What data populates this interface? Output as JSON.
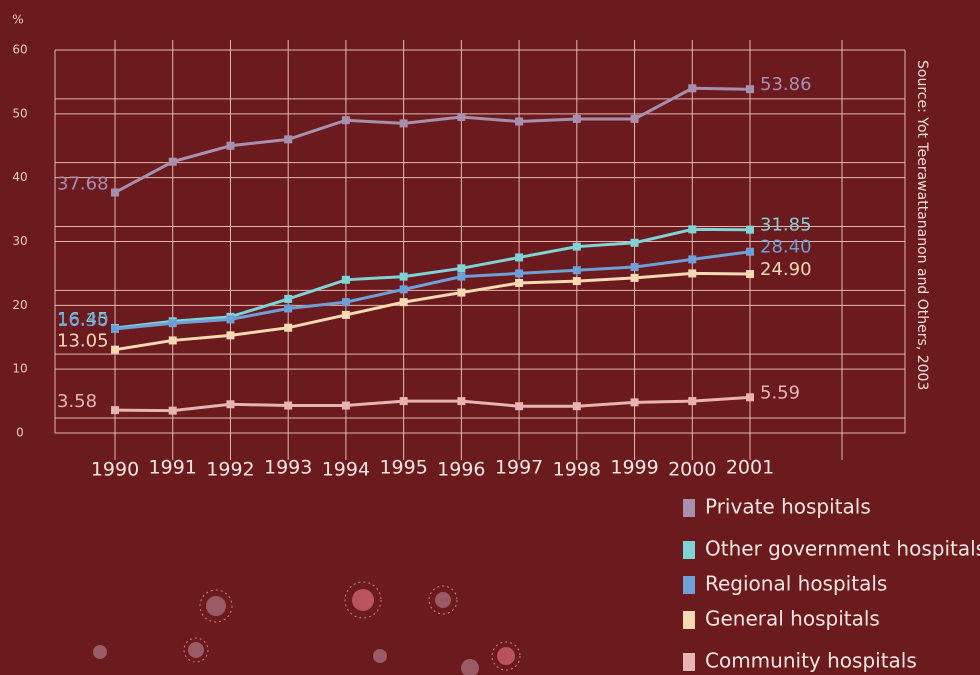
{
  "chart_data": {
    "type": "line",
    "y_label": "%",
    "source": "Source: Yot Teerawattananon and Others, 2003",
    "categories": [
      "1990",
      "1991",
      "1992",
      "1993",
      "1994",
      "1995",
      "1996",
      "1997",
      "1998",
      "1999",
      "2000",
      "2001"
    ],
    "ylim": [
      0,
      60
    ],
    "yticks": [
      0,
      10,
      20,
      30,
      40,
      50,
      60
    ],
    "grid": true,
    "series": [
      {
        "name": "Private hospitals",
        "color": "#a98fae",
        "values": [
          37.68,
          42.5,
          45,
          46,
          49,
          48.5,
          49.5,
          48.8,
          49.2,
          49.2,
          54,
          53.86
        ],
        "value_labels": [
          "37.68",
          null,
          null,
          null,
          null,
          null,
          null,
          null,
          null,
          null,
          null,
          "53.86"
        ]
      },
      {
        "name": "Other government hospitals",
        "color": "#7fd3d6",
        "values": [
          16.45,
          17.5,
          18.2,
          21,
          24,
          24.5,
          25.8,
          27.5,
          29.2,
          29.8,
          31.9,
          31.85
        ],
        "value_labels": [
          "16.45",
          null,
          null,
          null,
          null,
          null,
          null,
          null,
          null,
          null,
          null,
          "31.85"
        ]
      },
      {
        "name": "Regional hospitals",
        "color": "#6f9fd6",
        "values": [
          16.3,
          17.2,
          17.8,
          19.5,
          20.5,
          22.5,
          24.5,
          25,
          25.5,
          26,
          27.2,
          28.4
        ],
        "value_labels": [
          "16.30",
          null,
          null,
          null,
          null,
          null,
          null,
          null,
          null,
          null,
          null,
          "28.40"
        ]
      },
      {
        "name": "General hospitals",
        "color": "#f7d9b4",
        "values": [
          13.05,
          14.5,
          15.3,
          16.5,
          18.5,
          20.5,
          22,
          23.5,
          23.8,
          24.3,
          25,
          24.9
        ],
        "value_labels": [
          "13.05",
          null,
          null,
          null,
          null,
          null,
          null,
          null,
          null,
          null,
          null,
          "24.90"
        ]
      },
      {
        "name": "Community hospitals",
        "color": "#e8b3b3",
        "values": [
          3.58,
          3.5,
          4.5,
          4.3,
          4.3,
          5,
          5,
          4.2,
          4.2,
          4.8,
          5,
          5.59
        ],
        "value_labels": [
          "3.58",
          null,
          null,
          null,
          null,
          null,
          null,
          null,
          null,
          null,
          null,
          "5.59"
        ]
      }
    ]
  }
}
